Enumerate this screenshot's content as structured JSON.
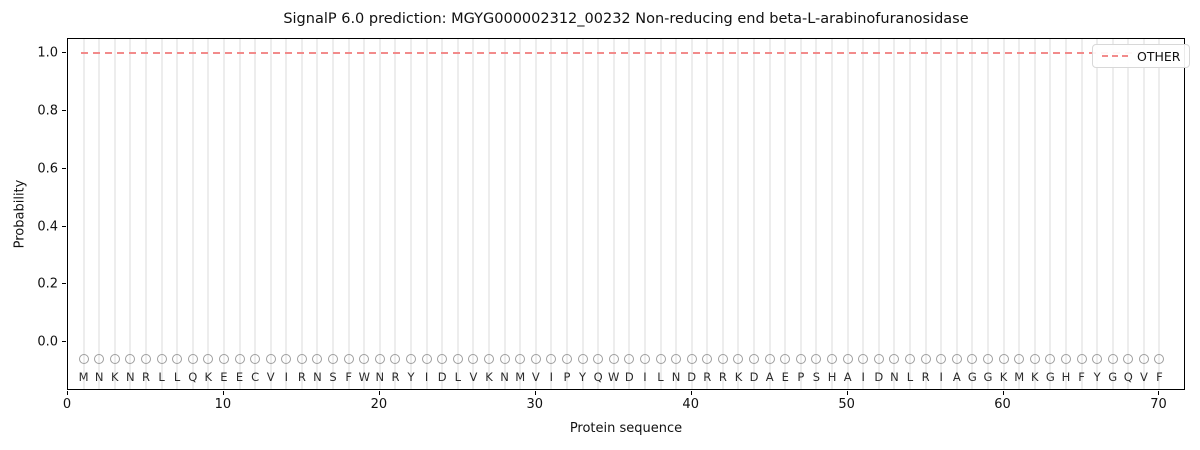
{
  "chart_data": {
    "type": "line",
    "title": "SignalP 6.0 prediction: MGYG000002312_00232 Non-reducing end beta-L-arabinofuranosidase",
    "xlabel": "Protein sequence",
    "ylabel": "Probability",
    "xlim": [
      0,
      71.7
    ],
    "ylim": [
      -0.17,
      1.05
    ],
    "xticks": [
      0,
      10,
      20,
      30,
      40,
      50,
      60,
      70
    ],
    "yticks": [
      0.0,
      0.2,
      0.4,
      0.6,
      0.8,
      1.0
    ],
    "grid": "vertical gridline at every residue position, light gray",
    "sequence": "MNKNRLLQKEECVIRNSFWNRYIDLVKNMVIPYQWDILNDRRKDAEPSHAIDNLRIAGGKMKGHFYGQVF",
    "series": [
      {
        "name": "OTHER",
        "style": "dashed",
        "color": "#f28b8b",
        "x_start": 1,
        "x_end": 70,
        "value": 1.0,
        "note": "constant probability 1.0 across all 70 residues"
      }
    ],
    "residue_markers": {
      "shape": "open-circle",
      "color": "#9f9f9f",
      "y": -0.06,
      "letters_y": -0.12
    },
    "legend": {
      "position": "upper-right",
      "entries": [
        {
          "label": "OTHER",
          "color": "#f28b8b",
          "style": "dashed"
        }
      ]
    },
    "colors": {
      "other_line": "#f28b8b",
      "gridline": "#ededed",
      "marker_stroke": "#9f9f9f",
      "letter_text": "#2b2b2b",
      "spine": "#000000"
    }
  }
}
